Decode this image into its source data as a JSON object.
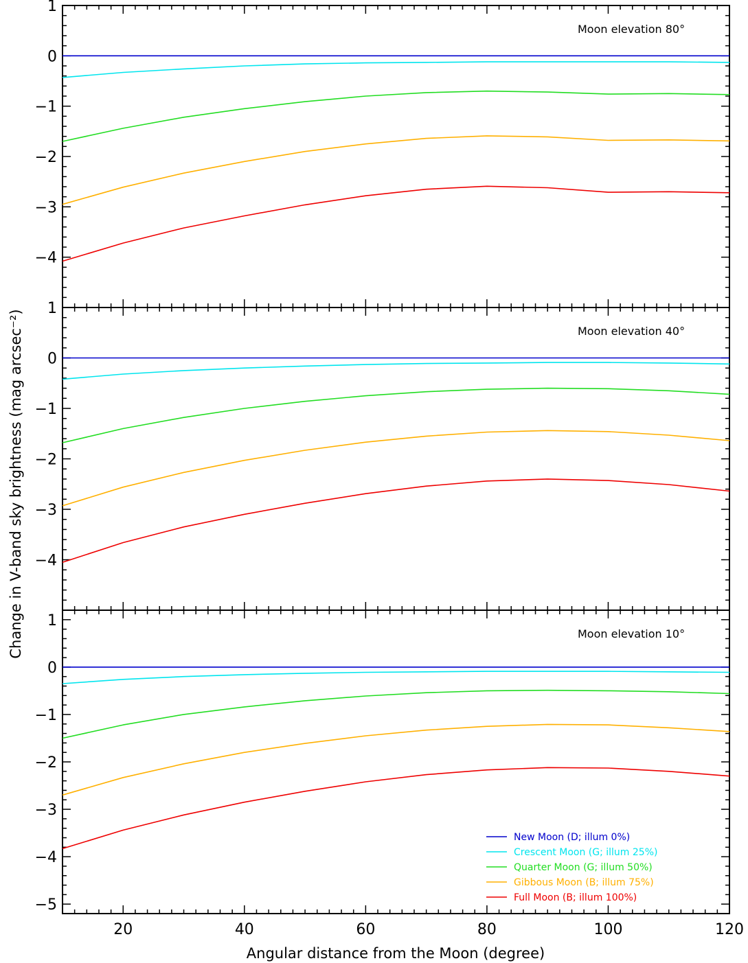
{
  "chart_data": {
    "type": "line",
    "xlabel": "Angular distance from the Moon (degree)",
    "ylabel": "Change in V-band sky brightness (mag arcsec⁻²)",
    "xlim": [
      10,
      120
    ],
    "x_ticks": [
      20,
      40,
      60,
      80,
      100,
      120
    ],
    "x": [
      10,
      20,
      30,
      40,
      50,
      60,
      70,
      80,
      90,
      100,
      110,
      120
    ],
    "legend_placement": "bottom-right of bottom panel",
    "legend": [
      {
        "label": "New Moon (D; illum 0%)",
        "color": "#0000cc"
      },
      {
        "label": "Crescent Moon (G; illum 25%)",
        "color": "#00e5ee"
      },
      {
        "label": "Quarter Moon (G; illum 50%)",
        "color": "#22dd22"
      },
      {
        "label": "Gibbous Moon (B; illum 75%)",
        "color": "#ffb000"
      },
      {
        "label": "Full Moon (B; illum 100%)",
        "color": "#ee0000"
      }
    ],
    "panels": [
      {
        "title": "Moon elevation 80°",
        "ylim": [
          -5,
          1
        ],
        "y_ticks": [
          -4,
          -3,
          -2,
          -1,
          0,
          1
        ],
        "series": [
          {
            "name": "New Moon (D; illum 0%)",
            "values": [
              0,
              0,
              0,
              0,
              0,
              0,
              0,
              0,
              0,
              0,
              0,
              0
            ]
          },
          {
            "name": "Crescent Moon (G; illum 25%)",
            "values": [
              -0.43,
              -0.33,
              -0.26,
              -0.2,
              -0.16,
              -0.14,
              -0.13,
              -0.12,
              -0.12,
              -0.12,
              -0.12,
              -0.13
            ]
          },
          {
            "name": "Quarter Moon (G; illum 50%)",
            "values": [
              -1.7,
              -1.44,
              -1.22,
              -1.05,
              -0.91,
              -0.8,
              -0.73,
              -0.7,
              -0.72,
              -0.76,
              -0.75,
              -0.77
            ]
          },
          {
            "name": "Gibbous Moon (B; illum 75%)",
            "values": [
              -2.95,
              -2.61,
              -2.33,
              -2.1,
              -1.9,
              -1.75,
              -1.64,
              -1.59,
              -1.61,
              -1.68,
              -1.67,
              -1.69
            ]
          },
          {
            "name": "Full Moon (B; illum 100%)",
            "values": [
              -4.08,
              -3.72,
              -3.42,
              -3.18,
              -2.96,
              -2.78,
              -2.65,
              -2.59,
              -2.62,
              -2.71,
              -2.7,
              -2.72
            ]
          }
        ]
      },
      {
        "title": "Moon elevation 40°",
        "ylim": [
          -5,
          1
        ],
        "y_ticks": [
          -4,
          -3,
          -2,
          -1,
          0,
          1
        ],
        "series": [
          {
            "name": "New Moon (D; illum 0%)",
            "values": [
              0,
              0,
              0,
              0,
              0,
              0,
              0,
              0,
              0,
              0,
              0,
              0
            ]
          },
          {
            "name": "Crescent Moon (G; illum 25%)",
            "values": [
              -0.42,
              -0.32,
              -0.25,
              -0.2,
              -0.16,
              -0.13,
              -0.11,
              -0.1,
              -0.09,
              -0.09,
              -0.1,
              -0.12
            ]
          },
          {
            "name": "Quarter Moon (G; illum 50%)",
            "values": [
              -1.68,
              -1.4,
              -1.18,
              -1.0,
              -0.86,
              -0.75,
              -0.67,
              -0.62,
              -0.6,
              -0.61,
              -0.65,
              -0.72
            ]
          },
          {
            "name": "Gibbous Moon (B; illum 75%)",
            "values": [
              -2.93,
              -2.56,
              -2.27,
              -2.03,
              -1.83,
              -1.67,
              -1.55,
              -1.47,
              -1.44,
              -1.46,
              -1.53,
              -1.64
            ]
          },
          {
            "name": "Full Moon (B; illum 100%)",
            "values": [
              -4.05,
              -3.66,
              -3.35,
              -3.1,
              -2.88,
              -2.69,
              -2.54,
              -2.44,
              -2.4,
              -2.43,
              -2.51,
              -2.64
            ]
          }
        ]
      },
      {
        "title": "Moon elevation 10°",
        "ylim": [
          -5.2,
          1.2
        ],
        "y_ticks": [
          -5,
          -4,
          -3,
          -2,
          -1,
          0,
          1
        ],
        "series": [
          {
            "name": "New Moon (D; illum 0%)",
            "values": [
              0,
              0,
              0,
              0,
              0,
              0,
              0,
              0,
              0,
              0,
              0,
              0
            ]
          },
          {
            "name": "Crescent Moon (G; illum 25%)",
            "values": [
              -0.35,
              -0.26,
              -0.2,
              -0.16,
              -0.13,
              -0.11,
              -0.1,
              -0.09,
              -0.09,
              -0.09,
              -0.1,
              -0.11
            ]
          },
          {
            "name": "Quarter Moon (G; illum 50%)",
            "values": [
              -1.5,
              -1.22,
              -1.0,
              -0.84,
              -0.71,
              -0.61,
              -0.54,
              -0.5,
              -0.49,
              -0.5,
              -0.52,
              -0.56
            ]
          },
          {
            "name": "Gibbous Moon (B; illum 75%)",
            "values": [
              -2.7,
              -2.33,
              -2.04,
              -1.8,
              -1.61,
              -1.45,
              -1.33,
              -1.25,
              -1.21,
              -1.22,
              -1.28,
              -1.36
            ]
          },
          {
            "name": "Full Moon (B; illum 100%)",
            "values": [
              -3.83,
              -3.44,
              -3.12,
              -2.85,
              -2.62,
              -2.42,
              -2.27,
              -2.17,
              -2.12,
              -2.13,
              -2.2,
              -2.3
            ]
          }
        ]
      }
    ]
  }
}
